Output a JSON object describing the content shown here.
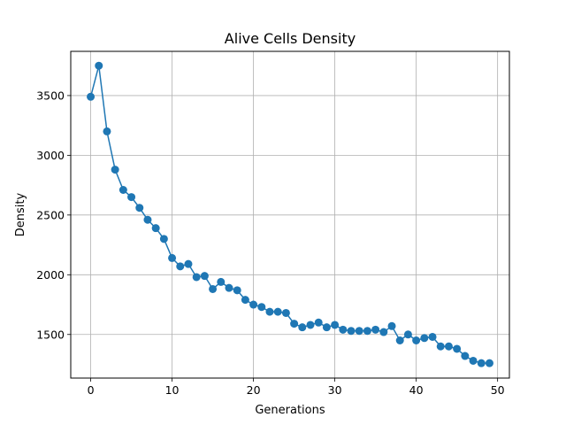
{
  "chart_data": {
    "type": "line",
    "title": "Alive Cells Density",
    "xlabel": "Generations",
    "ylabel": "Density",
    "xlim": [
      -2.45,
      51.45
    ],
    "ylim": [
      1135,
      3870
    ],
    "x_ticks": [
      0,
      10,
      20,
      30,
      40,
      50
    ],
    "y_ticks": [
      1500,
      2000,
      2500,
      3000,
      3500
    ],
    "grid": true,
    "marker": "circle",
    "series": [
      {
        "name": "",
        "color": "#1f77b4",
        "x": [
          0,
          1,
          2,
          3,
          4,
          5,
          6,
          7,
          8,
          9,
          10,
          11,
          12,
          13,
          14,
          15,
          16,
          17,
          18,
          19,
          20,
          21,
          22,
          23,
          24,
          25,
          26,
          27,
          28,
          29,
          30,
          31,
          32,
          33,
          34,
          35,
          36,
          37,
          38,
          39,
          40,
          41,
          42,
          43,
          44,
          45,
          46,
          47,
          48,
          49
        ],
        "y": [
          3490,
          3750,
          3200,
          2880,
          2710,
          2650,
          2560,
          2460,
          2390,
          2300,
          2140,
          2070,
          2090,
          1980,
          1990,
          1880,
          1940,
          1890,
          1870,
          1790,
          1750,
          1730,
          1690,
          1690,
          1680,
          1590,
          1560,
          1580,
          1600,
          1560,
          1580,
          1540,
          1530,
          1530,
          1530,
          1540,
          1520,
          1570,
          1450,
          1500,
          1450,
          1470,
          1480,
          1400,
          1400,
          1380,
          1320,
          1280,
          1260,
          1260
        ]
      }
    ]
  }
}
